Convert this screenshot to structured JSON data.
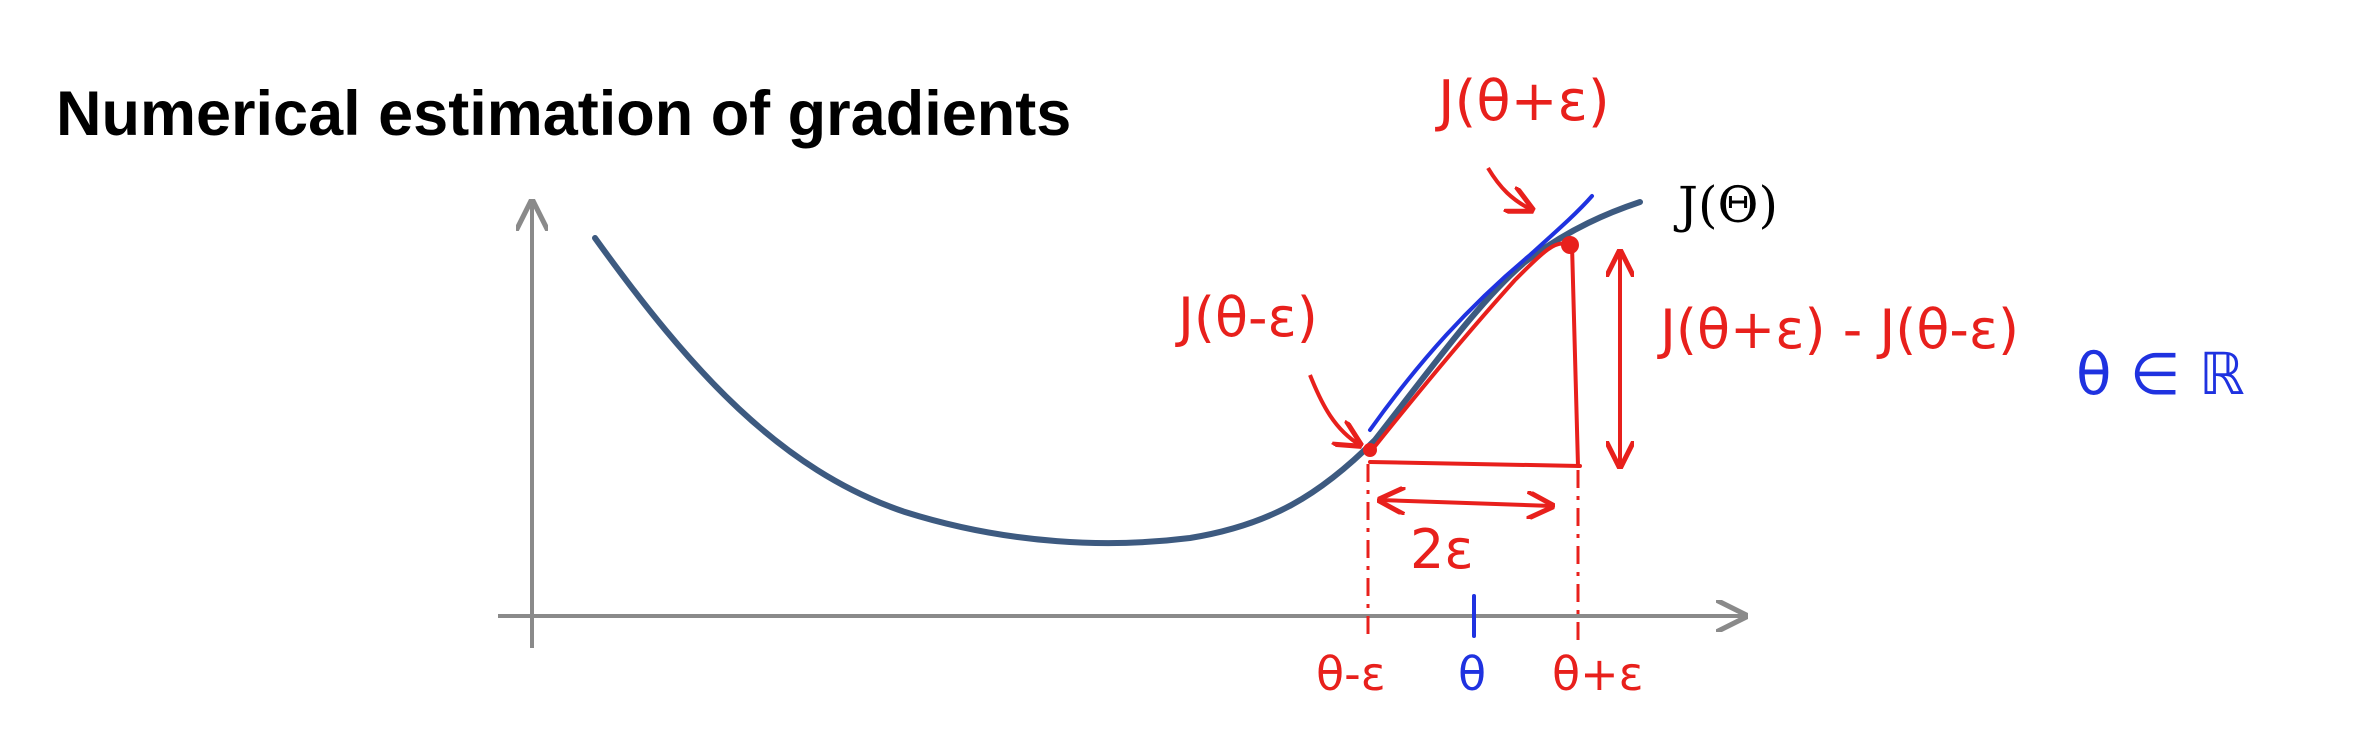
{
  "slide": {
    "title": "Numerical estimation of gradients"
  },
  "diagram": {
    "curve_label": "J(Θ)",
    "label_plus": "J(θ+ε)",
    "label_minus": "J(θ-ε)",
    "difference_label": "J(θ+ε) - J(θ-ε)",
    "domain_note": "θ ∈ ℝ",
    "width_label": "2ε",
    "tick_minus": "θ-ε",
    "tick_center": "θ",
    "tick_plus": "θ+ε",
    "colors": {
      "curve": "#3d5a80",
      "axes": "#8a8a8a",
      "annotation_red": "#e8201c",
      "annotation_blue": "#1f32e0",
      "text": "#000000"
    }
  }
}
